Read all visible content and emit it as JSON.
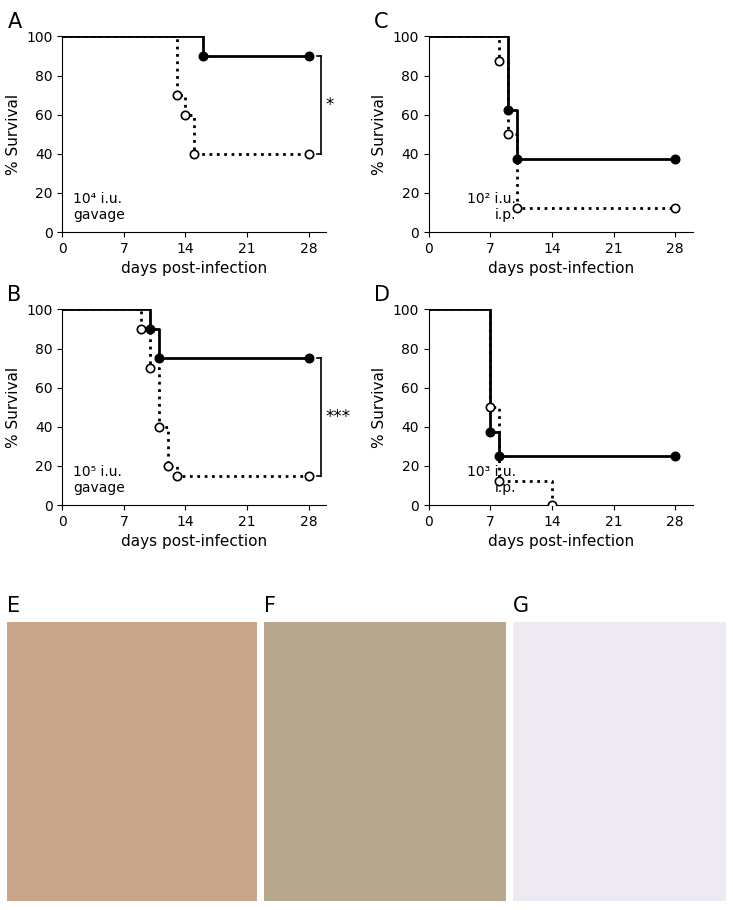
{
  "chart_data": [
    {
      "type": "step",
      "panel": "A",
      "annotation": "10⁴ i.u.\ngavage",
      "xlabel": "days post-infection",
      "ylabel": "% Survival",
      "xlim": [
        0,
        30
      ],
      "xticks": [
        0,
        7,
        14,
        21,
        28
      ],
      "ylim": [
        0,
        100
      ],
      "yticks": [
        0,
        20,
        40,
        60,
        80,
        100
      ],
      "series": [
        {
          "color": "#000000",
          "line_style": "solid",
          "marker": "filled_circle",
          "x": [
            0,
            16,
            28
          ],
          "values": [
            100,
            90,
            90
          ]
        },
        {
          "color": "#000000",
          "line_style": "dotted",
          "marker": "open_circle",
          "x": [
            0,
            13,
            14,
            15,
            28
          ],
          "values": [
            100,
            70,
            60,
            40,
            40
          ]
        }
      ],
      "significance": {
        "text": "*",
        "values": [
          40,
          90
        ]
      }
    },
    {
      "type": "step",
      "panel": "B",
      "annotation": "10⁵ i.u.\ngavage",
      "xlabel": "days post-infection",
      "ylabel": "% Survival",
      "xlim": [
        0,
        30
      ],
      "xticks": [
        0,
        7,
        14,
        21,
        28
      ],
      "ylim": [
        0,
        100
      ],
      "yticks": [
        0,
        20,
        40,
        60,
        80,
        100
      ],
      "series": [
        {
          "color": "#000000",
          "line_style": "solid",
          "marker": "filled_circle",
          "x": [
            0,
            10,
            11,
            28
          ],
          "values": [
            100,
            90,
            75,
            75
          ]
        },
        {
          "color": "#000000",
          "line_style": "dotted",
          "marker": "open_circle",
          "x": [
            0,
            9,
            10,
            11,
            12,
            13,
            28
          ],
          "values": [
            100,
            90,
            70,
            40,
            20,
            15,
            15
          ]
        }
      ],
      "significance": {
        "text": "***",
        "values": [
          15,
          75
        ]
      }
    },
    {
      "type": "step",
      "panel": "C",
      "annotation": "10² i.u.\ni.p.",
      "xlabel": "days post-infection",
      "ylabel": "% Survival",
      "xlim": [
        0,
        30
      ],
      "xticks": [
        0,
        7,
        14,
        21,
        28
      ],
      "ylim": [
        0,
        100
      ],
      "yticks": [
        0,
        20,
        40,
        60,
        80,
        100
      ],
      "series": [
        {
          "color": "#000000",
          "line_style": "solid",
          "marker": "filled_circle",
          "x": [
            0,
            9,
            10,
            28
          ],
          "values": [
            100,
            62.5,
            37.5,
            37.5
          ]
        },
        {
          "color": "#000000",
          "line_style": "dotted",
          "marker": "open_circle",
          "x": [
            0,
            8,
            9,
            10,
            28
          ],
          "values": [
            100,
            87.5,
            50,
            12.5,
            12.5
          ]
        }
      ]
    },
    {
      "type": "step",
      "panel": "D",
      "annotation": "10³ i.u.\ni.p.",
      "xlabel": "days post-infection",
      "ylabel": "% Survival",
      "xlim": [
        0,
        30
      ],
      "xticks": [
        0,
        7,
        14,
        21,
        28
      ],
      "ylim": [
        0,
        100
      ],
      "yticks": [
        0,
        20,
        40,
        60,
        80,
        100
      ],
      "series": [
        {
          "color": "#000000",
          "line_style": "solid",
          "marker": "filled_circle",
          "x": [
            0,
            7,
            8,
            28
          ],
          "values": [
            100,
            37.5,
            25,
            25
          ]
        },
        {
          "color": "#000000",
          "line_style": "dotted",
          "marker": "open_circle",
          "x": [
            0,
            7,
            8,
            14
          ],
          "values": [
            100,
            50,
            12.5,
            0
          ]
        }
      ]
    }
  ],
  "images": [
    {
      "panel": "E"
    },
    {
      "panel": "F"
    },
    {
      "panel": "G"
    }
  ]
}
